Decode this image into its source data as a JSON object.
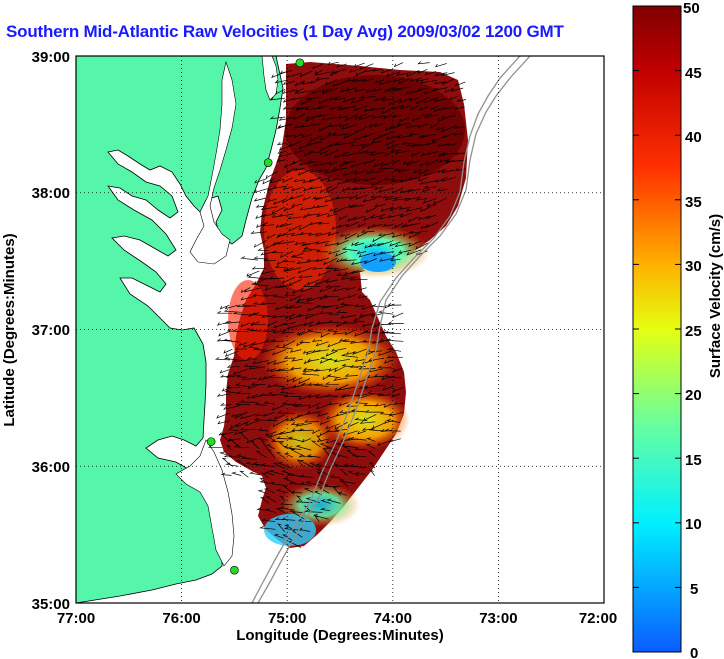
{
  "title": "Southern Mid-Atlantic Raw Velocities (1 Day Avg) 2009/03/02 1200 GMT",
  "colors": {
    "land": "#55f5aa",
    "ocean": "#ffffff",
    "title": "#1a1aff",
    "station": "#22dd22"
  },
  "map": {
    "xlabel": "Longitude (Degrees:Minutes)",
    "ylabel": "Latitude (Degrees:Minutes)",
    "xticks": [
      "77:00",
      "76:00",
      "75:00",
      "74:00",
      "73:00",
      "72:00"
    ],
    "yticks": [
      "39:00",
      "38:00",
      "37:00",
      "36:00",
      "35:00"
    ],
    "xlim": [
      -77,
      -72
    ],
    "ylim": [
      35,
      39
    ],
    "grid": "dotted"
  },
  "colorbar": {
    "label": "Surface Velocity (cm/s)",
    "ticks": [
      "50",
      "45",
      "40",
      "35",
      "30",
      "25",
      "20",
      "15",
      "10",
      "5",
      "0"
    ],
    "range": [
      0,
      50
    ],
    "colormap": "jet"
  },
  "chart_data": {
    "type": "heatmap",
    "title": "Southern Mid-Atlantic Raw Velocities (1 Day Avg) 2009/03/02 1200 GMT",
    "xlabel": "Longitude (Degrees:Minutes)",
    "ylabel": "Latitude (Degrees:Minutes)",
    "units": "cm/s",
    "vrange": [
      0,
      50
    ],
    "stations": [
      {
        "lon": -74.88,
        "lat": 38.95
      },
      {
        "lon": -75.18,
        "lat": 38.22
      },
      {
        "lon": -75.72,
        "lat": 36.18
      },
      {
        "lon": -75.5,
        "lat": 35.24
      }
    ],
    "speed_regions": [
      {
        "name": "northern high-speed core",
        "lon": -74.5,
        "lat": 38.2,
        "speed": 48
      },
      {
        "name": "low-speed pocket",
        "lon": -74.1,
        "lat": 37.45,
        "speed": 12
      },
      {
        "name": "central band",
        "lon": -74.6,
        "lat": 36.8,
        "speed": 42
      },
      {
        "name": "southern mixed area",
        "lon": -74.3,
        "lat": 36.3,
        "speed": 22
      },
      {
        "name": "cape hatteras area",
        "lon": -74.85,
        "lat": 35.7,
        "speed": 15
      }
    ]
  }
}
